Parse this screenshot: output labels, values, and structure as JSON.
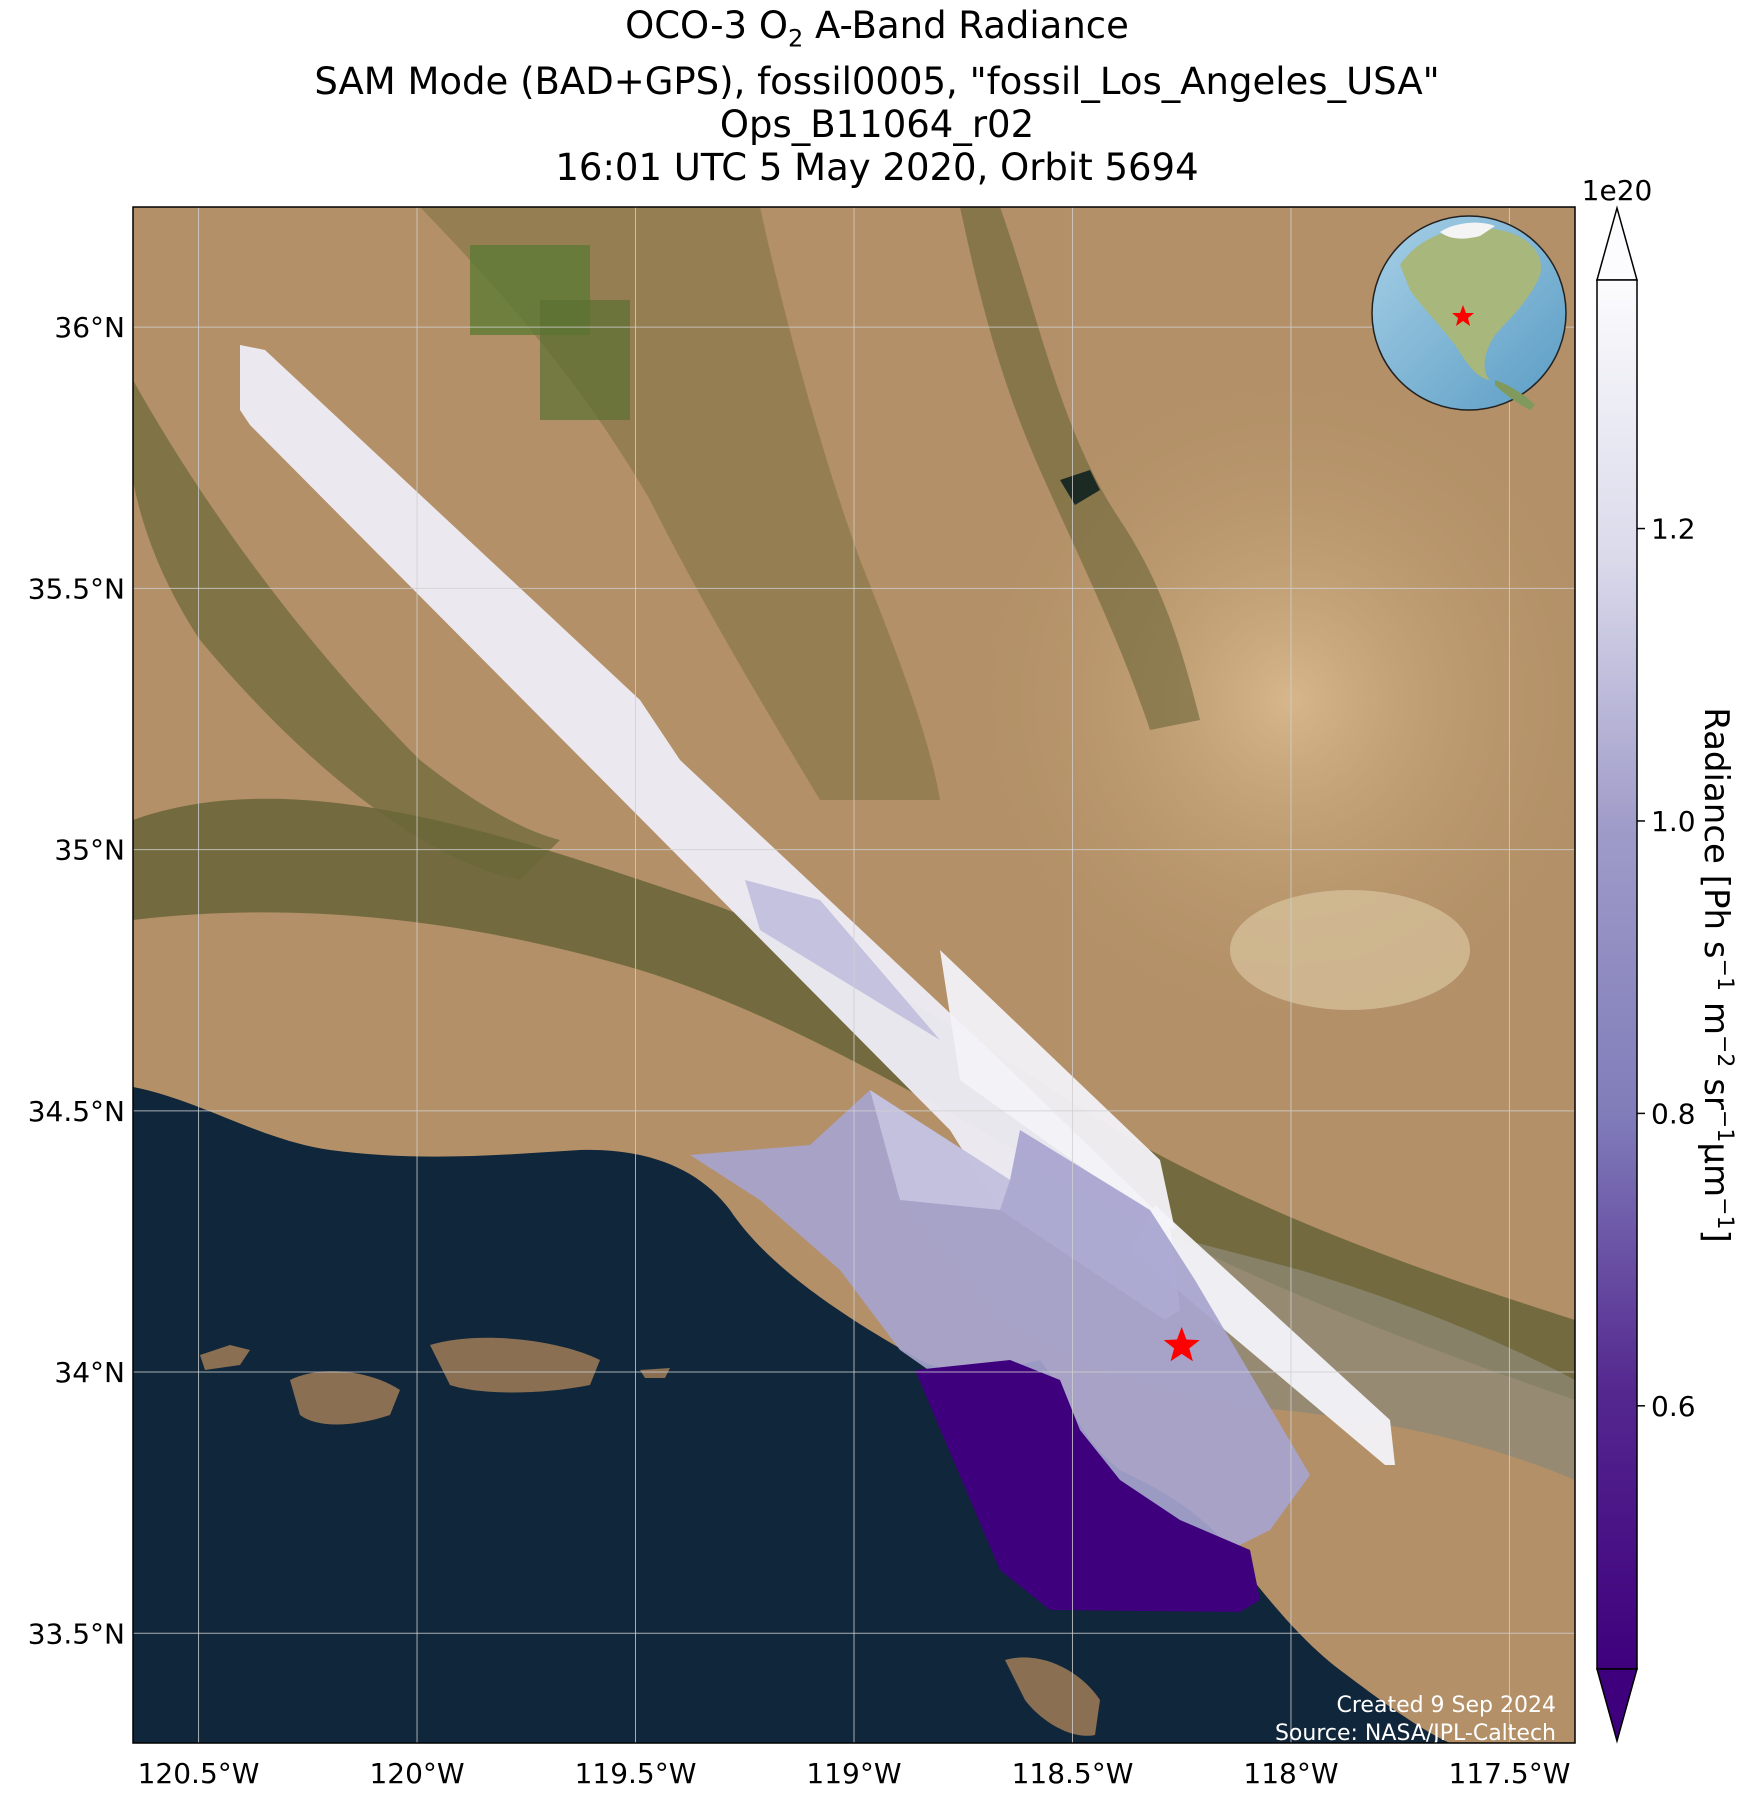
{
  "title": {
    "line1_pre": "OCO-3 O",
    "line1_sub": "2",
    "line1_post": " A-Band Radiance",
    "line2": "SAM Mode (BAD+GPS), fossil0005, \"fossil_Los_Angeles_USA\"",
    "line3": "Ops_B11064_r02",
    "line4": "16:01 UTC 5 May 2020, Orbit 5694"
  },
  "map": {
    "lon_range": [
      -120.65,
      -117.35
    ],
    "lat_range": [
      33.29,
      36.23
    ],
    "lon_ticks": [
      {
        "value": -120.5,
        "label": "120.5°W"
      },
      {
        "value": -120.0,
        "label": "120°W"
      },
      {
        "value": -119.5,
        "label": "119.5°W"
      },
      {
        "value": -119.0,
        "label": "119°W"
      },
      {
        "value": -118.5,
        "label": "118.5°W"
      },
      {
        "value": -118.0,
        "label": "118°W"
      },
      {
        "value": -117.5,
        "label": "117.5°W"
      }
    ],
    "lat_ticks": [
      {
        "value": 36.0,
        "label": "36°N"
      },
      {
        "value": 35.5,
        "label": "35.5°N"
      },
      {
        "value": 35.0,
        "label": "35°N"
      },
      {
        "value": 34.5,
        "label": "34.5°N"
      },
      {
        "value": 34.0,
        "label": "34°N"
      },
      {
        "value": 33.5,
        "label": "33.5°N"
      }
    ],
    "gridlines": true,
    "target_marker": {
      "lon": -118.25,
      "lat": 34.05,
      "symbol": "star",
      "color": "#ff0000"
    },
    "inset": "globe-north-america",
    "credit_line1": "Created 9 Sep 2024",
    "credit_line2": "Source: NASA/JPL-Caltech"
  },
  "colorbar": {
    "colormap": "Purples_r",
    "range": [
      0.42,
      1.37
    ],
    "ticks": [
      {
        "value": 0.6,
        "label": "0.6"
      },
      {
        "value": 0.8,
        "label": "0.8"
      },
      {
        "value": 1.0,
        "label": "1.0"
      },
      {
        "value": 1.2,
        "label": "1.2"
      }
    ],
    "exponent": "1e20",
    "label_parts": [
      "Radiance [Ph s",
      "−1",
      " m",
      "−2",
      " sr",
      "−1",
      "μm",
      "−1",
      "]"
    ],
    "extend": "both"
  },
  "colors": {
    "ocean": "#10263a",
    "land_tan": "#b39067",
    "land_green": "#5e5f32",
    "cb_low": "#3f007d",
    "cb_high": "#fcfbfd",
    "marker": "#ff0000"
  }
}
